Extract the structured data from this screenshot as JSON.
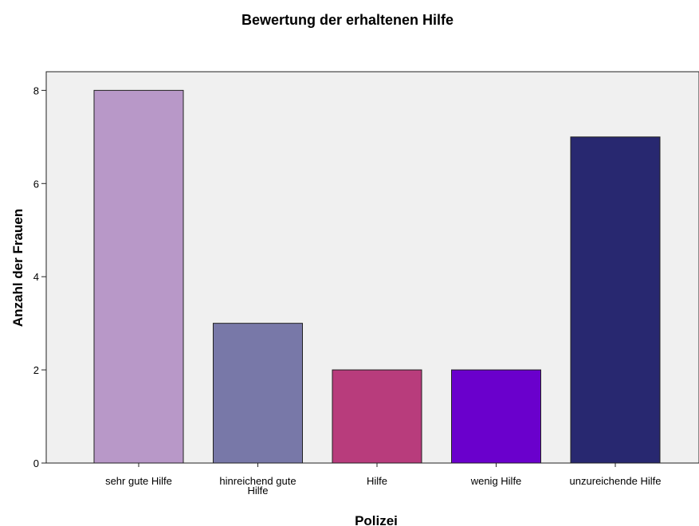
{
  "chart_data": {
    "type": "bar",
    "title": "Bewertung der erhaltenen Hilfe",
    "xlabel": "Polizei",
    "ylabel": "Anzahl der Frauen",
    "categories": [
      [
        "sehr gute Hilfe"
      ],
      [
        "hinreichend gute",
        "Hilfe"
      ],
      [
        "Hilfe"
      ],
      [
        "wenig Hilfe"
      ],
      [
        "unzureichende Hilfe"
      ]
    ],
    "values": [
      8,
      3,
      2,
      2,
      7
    ],
    "colors": [
      "#b898c8",
      "#7878a8",
      "#b83c7c",
      "#6a00cc",
      "#282870"
    ],
    "ylim": [
      0,
      8.4
    ],
    "yticks": [
      0,
      2,
      4,
      6,
      8
    ],
    "plot_background": "#f0f0f0",
    "grid": false,
    "legend": "none"
  }
}
